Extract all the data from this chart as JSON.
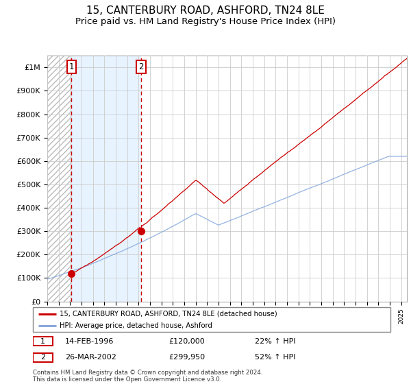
{
  "title": "15, CANTERBURY ROAD, ASHFORD, TN24 8LE",
  "subtitle": "Price paid vs. HM Land Registry's House Price Index (HPI)",
  "title_fontsize": 11,
  "subtitle_fontsize": 9.5,
  "sale1_date": "14-FEB-1996",
  "sale1_year": 1996.12,
  "sale1_price": 120000,
  "sale1_label": "22% ↑ HPI",
  "sale2_date": "26-MAR-2002",
  "sale2_year": 2002.23,
  "sale2_price": 299950,
  "sale2_label": "52% ↑ HPI",
  "xmin": 1994,
  "xmax": 2025.5,
  "ymin": 0,
  "ymax": 1050000,
  "legend1": "15, CANTERBURY ROAD, ASHFORD, TN24 8LE (detached house)",
  "legend2": "HPI: Average price, detached house, Ashford",
  "footer": "Contains HM Land Registry data © Crown copyright and database right 2024.\nThis data is licensed under the Open Government Licence v3.0.",
  "grid_color": "#cccccc",
  "hpi_line_color": "#88aadd",
  "house_line_color": "#cc0000",
  "shade_color": "#ddeeff",
  "yticks": [
    0,
    100000,
    200000,
    300000,
    400000,
    500000,
    600000,
    700000,
    800000,
    900000,
    1000000
  ],
  "ytick_labels": [
    "£0",
    "£100K",
    "£200K",
    "£300K",
    "£400K",
    "£500K",
    "£600K",
    "£700K",
    "£800K",
    "£900K",
    "£1M"
  ]
}
